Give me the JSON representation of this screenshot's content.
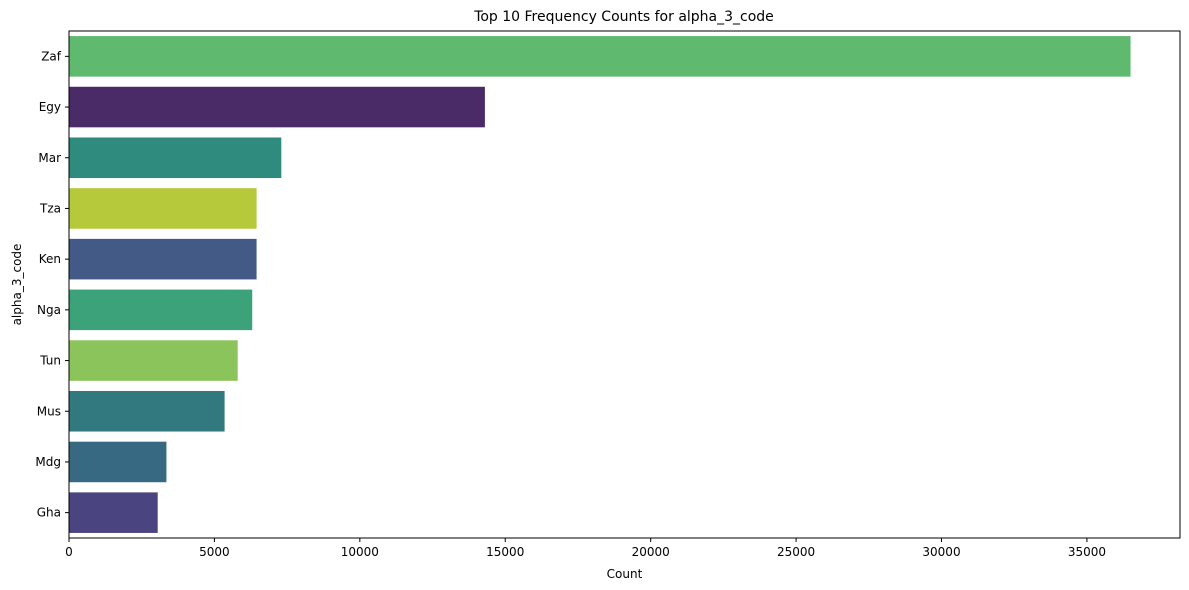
{
  "chart_data": {
    "type": "bar",
    "orientation": "horizontal",
    "title": "Top 10 Frequency Counts for alpha_3_code",
    "xlabel": "Count",
    "ylabel": "alpha_3_code",
    "xlim": [
      0,
      38200
    ],
    "x_ticks": [
      0,
      5000,
      10000,
      15000,
      20000,
      25000,
      30000,
      35000
    ],
    "grid": false,
    "legend": "none",
    "categories": [
      "Zaf",
      "Egy",
      "Mar",
      "Tza",
      "Ken",
      "Nga",
      "Tun",
      "Mus",
      "Mdg",
      "Gha"
    ],
    "values": [
      36500,
      14300,
      7300,
      6450,
      6450,
      6300,
      5800,
      5350,
      3350,
      3050
    ],
    "colors": [
      "#5fb96f",
      "#4a2b68",
      "#2e8b7e",
      "#b5c93a",
      "#435a87",
      "#3ba279",
      "#8ac45b",
      "#32787f",
      "#376a82",
      "#4a4580"
    ]
  }
}
